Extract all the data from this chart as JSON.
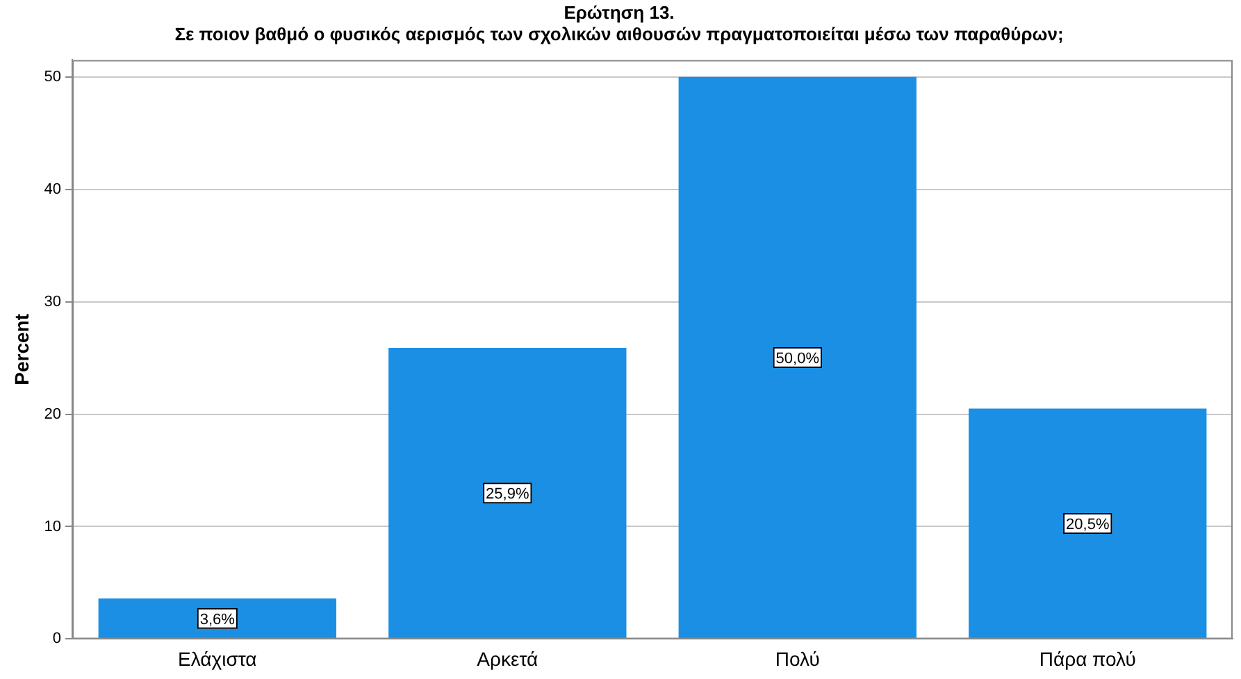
{
  "chart_data": {
    "type": "bar",
    "title": "Ερώτηση 13.",
    "subtitle": "Σε ποιον βαθμό ο φυσικός αερισμός των σχολικών αιθουσών πραγματοποιείται μέσω των παραθύρων;",
    "ylabel": "Percent",
    "categories": [
      "Ελάχιστα",
      "Αρκετά",
      "Πολύ",
      "Πάρα πολύ"
    ],
    "values": [
      3.6,
      25.9,
      50.0,
      20.5
    ],
    "value_labels": [
      "3,6%",
      "25,9%",
      "50,0%",
      "20,5%"
    ],
    "color": "#1a8fe3",
    "ylim": [
      0,
      51.5
    ],
    "yticks": [
      0,
      10,
      20,
      30,
      40,
      50
    ],
    "grid": "y",
    "legend": false
  }
}
